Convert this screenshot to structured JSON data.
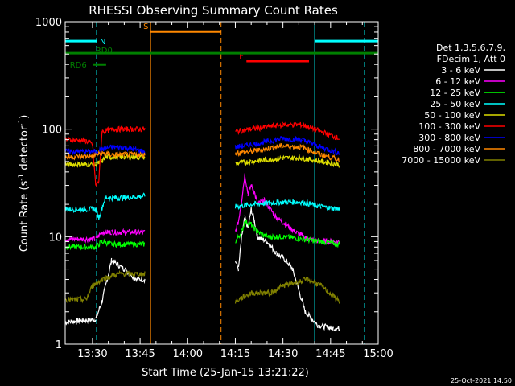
{
  "chart_data": {
    "type": "line",
    "title": "RHESSI Observing Summary Count Rates",
    "xlabel": "Start Time (25-Jan-15 13:21:22)",
    "ylabel": "Count Rate (s",
    "ylabel_sup1": "-1",
    "ylabel_mid": " detector",
    "ylabel_sup2": "-1",
    "ylabel_end": ")",
    "y_scale": "log",
    "ylim": [
      1,
      1000
    ],
    "xlim_min": [
      801.4,
      900
    ],
    "x_ticks": [
      {
        "label": "13:30",
        "min": 810
      },
      {
        "label": "13:45",
        "min": 825
      },
      {
        "label": "14:00",
        "min": 840
      },
      {
        "label": "14:15",
        "min": 855
      },
      {
        "label": "14:30",
        "min": 870
      },
      {
        "label": "14:45",
        "min": 885
      },
      {
        "label": "15:00",
        "min": 900
      }
    ],
    "y_ticks": [
      {
        "label": "1",
        "v": 1
      },
      {
        "label": "10",
        "v": 10
      },
      {
        "label": "100",
        "v": 100
      },
      {
        "label": "1000",
        "v": 1000
      }
    ],
    "legend": {
      "header1": "Det 1,3,5,6,7,9,",
      "header2": "FDecim 1, Att 0",
      "placement": "right"
    },
    "series": [
      {
        "name": "3 - 6 keV",
        "color": "#ffffff",
        "points": [
          [
            801.4,
            1.6
          ],
          [
            811,
            1.7
          ],
          [
            813,
            2.5
          ],
          [
            816,
            6
          ],
          [
            820,
            5
          ],
          [
            824,
            4
          ],
          [
            826.5,
            4
          ],
          [
            855,
            6
          ],
          [
            856,
            5
          ],
          [
            857,
            10
          ],
          [
            858,
            15
          ],
          [
            859,
            12
          ],
          [
            860,
            18
          ],
          [
            861,
            14
          ],
          [
            862,
            10
          ],
          [
            865,
            9
          ],
          [
            868,
            7
          ],
          [
            871,
            6
          ],
          [
            873,
            5
          ],
          [
            877,
            2
          ],
          [
            881,
            1.5
          ],
          [
            886,
            1.4
          ],
          [
            887.8,
            1.4
          ]
        ]
      },
      {
        "name": "6 - 12 keV",
        "color": "#ff00ff",
        "points": [
          [
            801.4,
            9.5
          ],
          [
            811,
            9.5
          ],
          [
            813,
            11
          ],
          [
            816,
            11
          ],
          [
            820,
            11
          ],
          [
            826.5,
            11
          ],
          [
            855,
            11
          ],
          [
            856,
            14
          ],
          [
            857,
            22
          ],
          [
            858,
            38
          ],
          [
            859,
            25
          ],
          [
            860,
            30
          ],
          [
            861,
            26
          ],
          [
            862,
            20
          ],
          [
            864,
            22
          ],
          [
            866,
            18
          ],
          [
            868,
            15
          ],
          [
            871,
            13
          ],
          [
            874,
            11
          ],
          [
            878,
            9.5
          ],
          [
            882,
            9
          ],
          [
            887.8,
            9
          ]
        ]
      },
      {
        "name": "12 - 25 keV",
        "color": "#00ff00",
        "points": [
          [
            801.4,
            8
          ],
          [
            811,
            8
          ],
          [
            813,
            9
          ],
          [
            816,
            8.5
          ],
          [
            820,
            8.5
          ],
          [
            826.5,
            8.5
          ],
          [
            855,
            9
          ],
          [
            857,
            11
          ],
          [
            858,
            14
          ],
          [
            860,
            13
          ],
          [
            862,
            11
          ],
          [
            865,
            10
          ],
          [
            870,
            10
          ],
          [
            876,
            9.5
          ],
          [
            882,
            9
          ],
          [
            887.8,
            8.5
          ]
        ]
      },
      {
        "name": "25 - 50 keV",
        "color": "#00ffff",
        "points": [
          [
            801.4,
            18
          ],
          [
            811,
            18
          ],
          [
            812,
            15
          ],
          [
            814,
            23
          ],
          [
            820,
            23
          ],
          [
            826.5,
            24
          ],
          [
            855,
            19
          ],
          [
            860,
            20
          ],
          [
            870,
            21
          ],
          [
            876,
            21
          ],
          [
            882,
            19
          ],
          [
            887.8,
            18
          ]
        ]
      },
      {
        "name": "50 - 100 keV",
        "color": "#dddd00",
        "points": [
          [
            801.4,
            47
          ],
          [
            811,
            47
          ],
          [
            813,
            50
          ],
          [
            814,
            55
          ],
          [
            820,
            55
          ],
          [
            826.5,
            55
          ],
          [
            855,
            48
          ],
          [
            860,
            50
          ],
          [
            870,
            54
          ],
          [
            876,
            54
          ],
          [
            882,
            50
          ],
          [
            887.8,
            47
          ]
        ]
      },
      {
        "name": "100 - 300 keV",
        "color": "#ff0000",
        "points": [
          [
            801.4,
            80
          ],
          [
            808,
            78
          ],
          [
            810,
            72
          ],
          [
            811,
            30
          ],
          [
            812,
            33
          ],
          [
            813,
            95
          ],
          [
            817,
            100
          ],
          [
            820,
            100
          ],
          [
            826.5,
            100
          ],
          [
            855,
            95
          ],
          [
            860,
            100
          ],
          [
            870,
            110
          ],
          [
            876,
            110
          ],
          [
            882,
            95
          ],
          [
            887.8,
            82
          ]
        ]
      },
      {
        "name": "300 - 800 keV",
        "color": "#0000ff",
        "points": [
          [
            801.4,
            62
          ],
          [
            811,
            62
          ],
          [
            813,
            65
          ],
          [
            816,
            68
          ],
          [
            820,
            68
          ],
          [
            826.5,
            62
          ],
          [
            855,
            68
          ],
          [
            860,
            72
          ],
          [
            870,
            82
          ],
          [
            876,
            80
          ],
          [
            882,
            68
          ],
          [
            887.8,
            60
          ]
        ]
      },
      {
        "name": "800 - 7000 keV",
        "color": "#ff8800",
        "points": [
          [
            801.4,
            55
          ],
          [
            810,
            56
          ],
          [
            813,
            60
          ],
          [
            816,
            58
          ],
          [
            820,
            58
          ],
          [
            826.5,
            58
          ],
          [
            855,
            60
          ],
          [
            860,
            62
          ],
          [
            870,
            70
          ],
          [
            876,
            68
          ],
          [
            882,
            58
          ],
          [
            887.8,
            52
          ]
        ]
      },
      {
        "name": "7000 - 15000 keV",
        "color": "#808000",
        "points": [
          [
            801.4,
            2.6
          ],
          [
            808,
            2.6
          ],
          [
            810,
            3.5
          ],
          [
            813,
            4
          ],
          [
            818,
            4.5
          ],
          [
            826.5,
            4.5
          ],
          [
            855,
            2.5
          ],
          [
            860,
            3
          ],
          [
            866,
            3
          ],
          [
            870,
            3.5
          ],
          [
            878,
            4
          ],
          [
            882,
            3.5
          ],
          [
            887.8,
            2.5
          ]
        ]
      }
    ],
    "segments": [
      {
        "label": "N",
        "color": "#00ffff",
        "y": 660,
        "x0": 801.4,
        "x1": 811.3
      },
      {
        "label": "",
        "color": "#00ffff",
        "y": 660,
        "x0": 880,
        "x1": 900
      },
      {
        "label": "S",
        "color": "#ff8800",
        "y": 810,
        "x0": 828.3,
        "x1": 850.5
      },
      {
        "label": "F",
        "color": "#ff0000",
        "y": 430,
        "x0": 858.5,
        "x1": 878.2
      },
      {
        "label": "RD0",
        "color": "#008000",
        "y": 510,
        "x0": 801.4,
        "x1": 900
      },
      {
        "label": "RD6",
        "color": "#008000",
        "y": 400,
        "x0": 810.2,
        "x1": 814.3
      }
    ],
    "vlines": [
      {
        "min": 801.4,
        "color": "#00ffff",
        "dash": false
      },
      {
        "min": 811.3,
        "color": "#00ffff",
        "dash": true
      },
      {
        "min": 828.3,
        "color": "#ff8800",
        "dash": false
      },
      {
        "min": 850.5,
        "color": "#ff8800",
        "dash": true
      },
      {
        "min": 880,
        "color": "#00ffff",
        "dash": false
      },
      {
        "min": 895.7,
        "color": "#00ffff",
        "dash": true
      }
    ],
    "footer_date": "25-Oct-2021 14:50"
  }
}
